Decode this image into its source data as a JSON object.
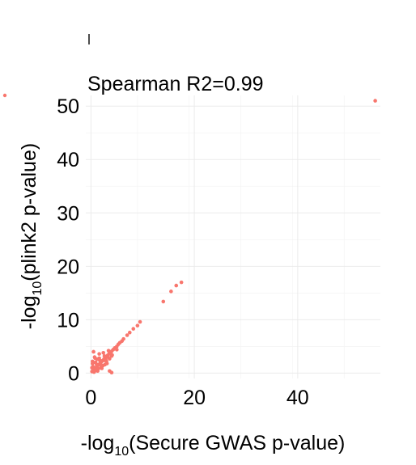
{
  "chart_data": {
    "type": "scatter",
    "title": "Spearman R2=0.99",
    "xlabel_prefix": "-log",
    "xlabel_sub": "10",
    "xlabel_suffix": "(Secure GWAS p-value)",
    "ylabel_prefix": "-log",
    "ylabel_sub": "10",
    "ylabel_suffix": "(plink2 p-value)",
    "xlim": [
      -1,
      56
    ],
    "ylim": [
      -1,
      52
    ],
    "x_ticks": [
      0,
      20,
      40
    ],
    "y_ticks": [
      0,
      10,
      20,
      30,
      40,
      50
    ],
    "x_tick_labels": [
      "0",
      "20",
      "40"
    ],
    "y_tick_labels": [
      "0",
      "10",
      "20",
      "30",
      "40",
      "50"
    ],
    "grid": true,
    "legend": "none",
    "point_color": "#f8766d",
    "series": [
      {
        "x": [
          0.2,
          0.5,
          0.8,
          1.0,
          1.2,
          1.5,
          1.8,
          2.0,
          2.2,
          2.5,
          2.8,
          3.0,
          3.2,
          3.5,
          3.8,
          4.0,
          4.3,
          4.6,
          5.0,
          5.3,
          5.6,
          6.0,
          6.3,
          0.4,
          0.9,
          1.3,
          1.7,
          2.1,
          2.6,
          3.1,
          3.6,
          4.1,
          0.3,
          0.7,
          1.1,
          1.6,
          2.3,
          2.9,
          3.4,
          0.6,
          1.4,
          2.4,
          3.3,
          0.3,
          0.8,
          1.9,
          2.7,
          0.5,
          1.2,
          0.2,
          1.0,
          2.0,
          3.0,
          4.0,
          5.0,
          0.6,
          1.6,
          2.6,
          7.0,
          7.5,
          8.2,
          9.0,
          9.5,
          14.0,
          15.5,
          16.5,
          17.5,
          55.0,
          4.0,
          3.6
        ],
        "y": [
          0.3,
          0.6,
          0.9,
          1.1,
          1.3,
          1.6,
          1.9,
          2.1,
          2.3,
          2.6,
          2.9,
          3.0,
          3.3,
          3.6,
          3.9,
          4.1,
          4.4,
          4.7,
          5.0,
          5.4,
          5.7,
          6.0,
          6.4,
          1.2,
          2.0,
          0.4,
          2.4,
          0.9,
          3.2,
          1.8,
          2.7,
          3.4,
          2.2,
          3.0,
          1.6,
          3.6,
          1.4,
          2.4,
          4.2,
          0.2,
          0.8,
          3.8,
          3.0,
          1.8,
          2.8,
          1.0,
          1.6,
          4.0,
          2.6,
          1.0,
          0.5,
          1.5,
          2.2,
          3.2,
          4.4,
          0.9,
          2.8,
          2.4,
          7.1,
          7.6,
          8.3,
          8.9,
          9.6,
          13.4,
          15.3,
          16.4,
          17.0,
          51.0,
          0.1,
          0.4
        ]
      }
    ],
    "stray_point_color": "#f8766d"
  }
}
